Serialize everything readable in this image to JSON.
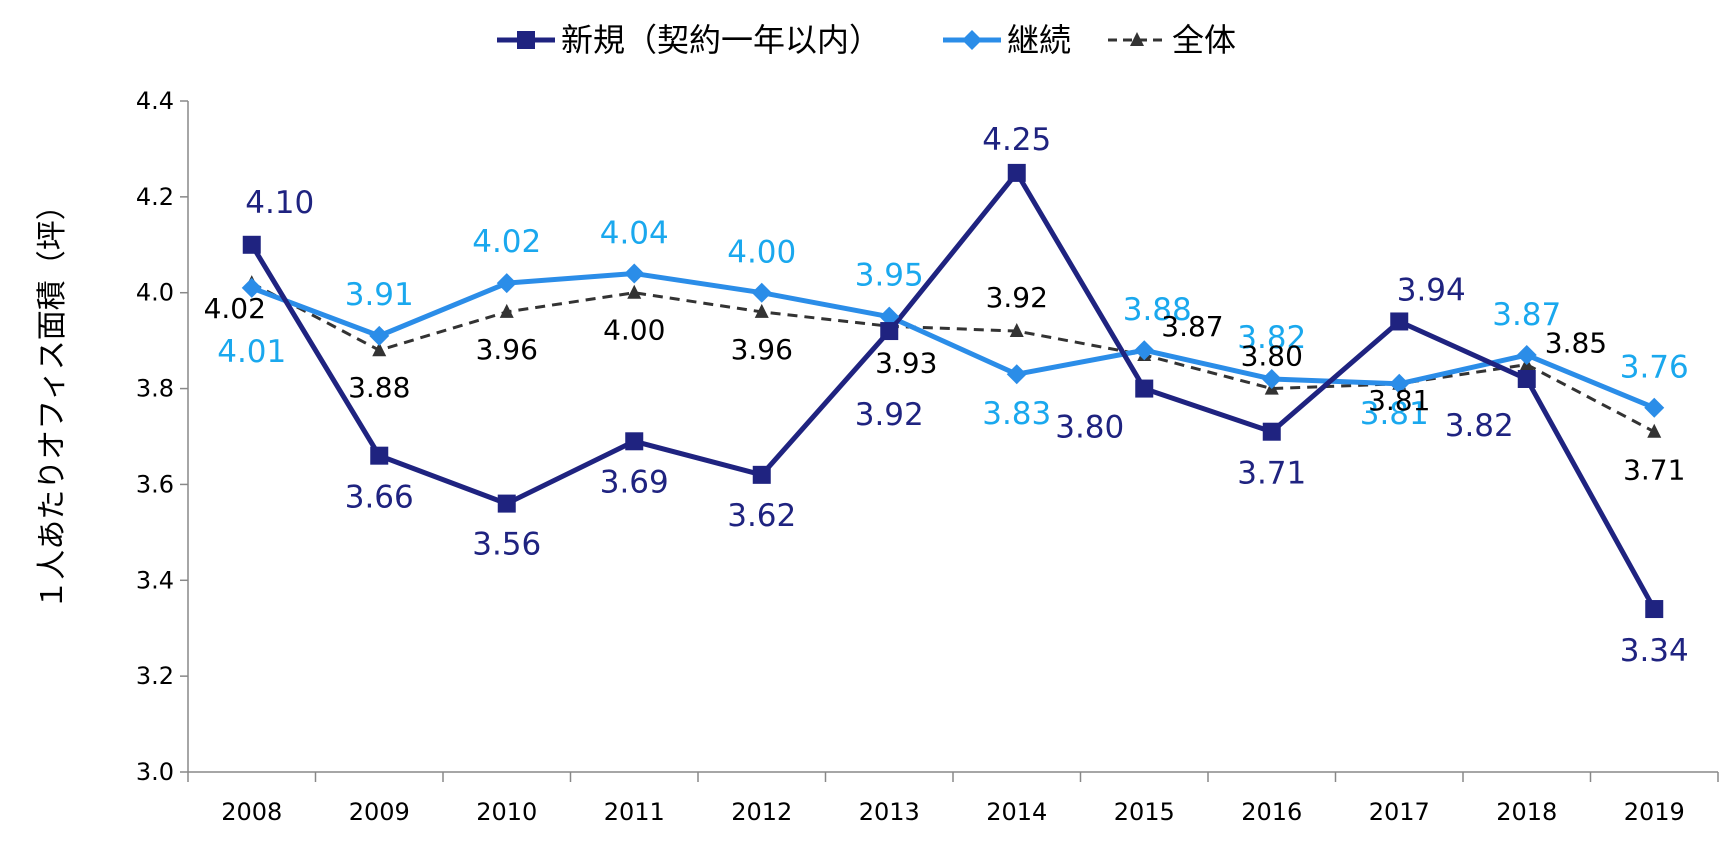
{
  "colors": {
    "series_0": "#1f2380",
    "series_1": "#2b8de8",
    "series_1_label": "#1aa8ee",
    "series_2": "#333333",
    "axis": "#888888"
  },
  "chart_data": {
    "type": "line",
    "title": "",
    "xlabel": "",
    "ylabel": "１人あたりオフィス面積（坪）",
    "ylim": [
      3.0,
      4.4
    ],
    "y_ticks": [
      "3.0",
      "3.2",
      "3.4",
      "3.6",
      "3.8",
      "4.0",
      "4.2",
      "4.4"
    ],
    "grid": false,
    "legend_position": "top-center",
    "categories": [
      "2008",
      "2009",
      "2010",
      "2011",
      "2012",
      "2013",
      "2014",
      "2015",
      "2016",
      "2017",
      "2018",
      "2019"
    ],
    "series": [
      {
        "name": "新規（契約一年以内）",
        "marker": "square",
        "line_style": "solid",
        "values": [
          4.1,
          3.66,
          3.56,
          3.69,
          3.62,
          3.92,
          4.25,
          3.8,
          3.71,
          3.94,
          3.82,
          3.34
        ],
        "labels": [
          "4.10",
          "3.66",
          "3.56",
          "3.69",
          "3.62",
          "3.92",
          "4.25",
          "3.80",
          "3.71",
          "3.94",
          "3.82",
          "3.34"
        ]
      },
      {
        "name": "継続",
        "marker": "diamond",
        "line_style": "solid",
        "values": [
          4.01,
          3.91,
          4.02,
          4.04,
          4.0,
          3.95,
          3.83,
          3.88,
          3.82,
          3.81,
          3.87,
          3.76
        ],
        "labels": [
          "4.01",
          "3.91",
          "4.02",
          "4.04",
          "4.00",
          "3.95",
          "3.83",
          "3.88",
          "3.82",
          "3.81",
          "3.87",
          "3.76"
        ]
      },
      {
        "name": "全体",
        "marker": "triangle",
        "line_style": "dashed",
        "values": [
          4.02,
          3.88,
          3.96,
          4.0,
          3.96,
          3.93,
          3.92,
          3.87,
          3.8,
          3.81,
          3.85,
          3.71
        ],
        "labels": [
          "4.02",
          "3.88",
          "3.96",
          "4.00",
          "3.96",
          "3.93",
          "3.92",
          "3.87",
          "3.80",
          "3.81",
          "3.85",
          "3.71"
        ]
      }
    ]
  }
}
